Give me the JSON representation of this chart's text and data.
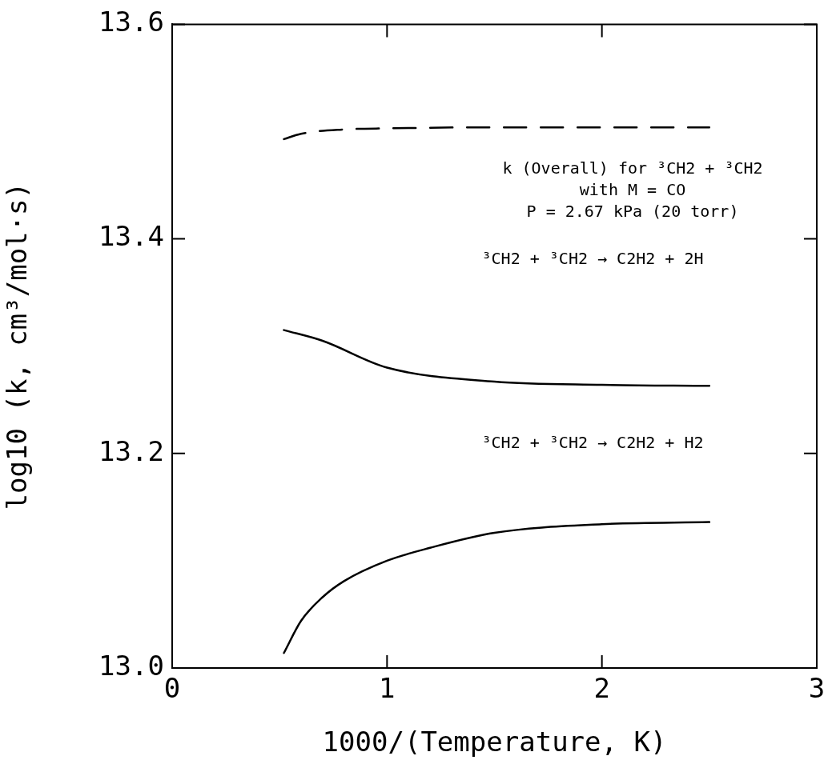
{
  "chart_data": {
    "type": "line",
    "xlabel": "1000/(Temperature, K)",
    "ylabel": "log10 (k, cm³/mol·s)",
    "xlim": [
      0,
      3
    ],
    "xticks": [
      0,
      1,
      2,
      3
    ],
    "ylim": [
      13.0,
      13.6
    ],
    "yticks": [
      {
        "value": 13.0,
        "label": "13.0"
      },
      {
        "value": 13.2,
        "label": "13.2"
      },
      {
        "value": 13.4,
        "label": "13.4"
      },
      {
        "value": 13.6,
        "label": "13.6"
      }
    ],
    "grid": false,
    "legend": false,
    "marker": "none",
    "series": [
      {
        "color": "#000000",
        "line_style": "dashed",
        "x": [
          0.52,
          0.6,
          0.8,
          1.0,
          1.5,
          2.0,
          2.5
        ],
        "values": [
          13.493,
          13.498,
          13.502,
          13.503,
          13.504,
          13.504,
          13.504
        ]
      },
      {
        "color": "#000000",
        "line_style": "solid",
        "x": [
          0.52,
          0.7,
          1.0,
          1.5,
          2.0,
          2.5
        ],
        "values": [
          13.315,
          13.305,
          13.28,
          13.267,
          13.264,
          13.263
        ]
      },
      {
        "color": "#000000",
        "line_style": "solid",
        "x": [
          0.52,
          0.6,
          0.7,
          0.8,
          1.0,
          1.2,
          1.5,
          2.0,
          2.5
        ],
        "values": [
          13.014,
          13.044,
          13.066,
          13.081,
          13.1,
          13.112,
          13.126,
          13.134,
          13.136
        ]
      }
    ],
    "annotations": [
      "k (Overall) for ³CH2 + ³CH2",
      "with M = CO",
      "P = 2.67 kPa (20 torr)",
      "³CH2 + ³CH2 → C2H2 + 2H",
      "³CH2 + ³CH2 → C2H2 + H2"
    ]
  }
}
